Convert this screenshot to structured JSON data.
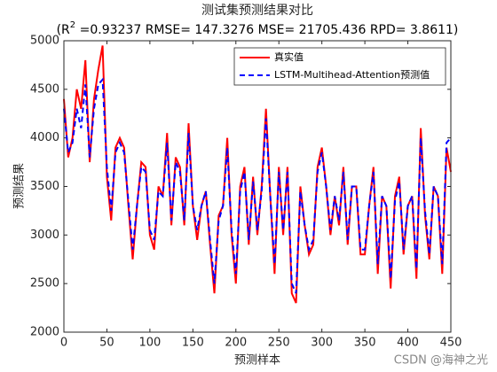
{
  "chart_data": {
    "type": "line",
    "title": "测试集预测结果对比",
    "subtitle_parts": [
      "(R",
      "2",
      " =0.93237 RMSE= 147.3276 MSE= 21705.436 RPD= 3.8611)"
    ],
    "x_label": "预测样本",
    "y_label": "预测结果",
    "watermark": "CSDN @海神之光",
    "legend": "top-right",
    "x": [
      0,
      5,
      10,
      15,
      20,
      25,
      30,
      35,
      40,
      45,
      50,
      55,
      60,
      65,
      70,
      75,
      80,
      85,
      90,
      95,
      100,
      105,
      110,
      115,
      120,
      125,
      130,
      135,
      140,
      145,
      150,
      155,
      160,
      165,
      170,
      175,
      180,
      185,
      190,
      195,
      200,
      205,
      210,
      215,
      220,
      225,
      230,
      235,
      240,
      245,
      250,
      255,
      260,
      265,
      270,
      275,
      280,
      285,
      290,
      295,
      300,
      305,
      310,
      315,
      320,
      325,
      330,
      335,
      340,
      345,
      350,
      355,
      360,
      365,
      370,
      375,
      380,
      385,
      390,
      395,
      400,
      405,
      410,
      415,
      420,
      425,
      430,
      435,
      440,
      445,
      450
    ],
    "series": [
      {
        "name": "真实值",
        "color": "#ff0000",
        "dash": false,
        "values": [
          4400,
          3800,
          4000,
          4500,
          4300,
          4800,
          3750,
          4400,
          4700,
          4950,
          3600,
          3150,
          3900,
          4000,
          3900,
          3300,
          2750,
          3300,
          3750,
          3700,
          3000,
          2850,
          3500,
          3400,
          4050,
          3100,
          3800,
          3700,
          3100,
          4150,
          3300,
          2950,
          3300,
          3450,
          2900,
          2400,
          3200,
          3300,
          4000,
          3000,
          2500,
          3500,
          3700,
          2900,
          3600,
          3000,
          3500,
          4300,
          3400,
          2600,
          3700,
          3000,
          3700,
          2400,
          2300,
          3500,
          3100,
          2800,
          2900,
          3700,
          3900,
          3500,
          3000,
          3400,
          3100,
          3700,
          2900,
          3500,
          3500,
          2800,
          2800,
          3300,
          3700,
          2600,
          3400,
          3300,
          2450,
          3400,
          3600,
          2800,
          3300,
          3400,
          2550,
          4100,
          3200,
          2750,
          3500,
          3400,
          2600,
          3900,
          3650
        ]
      },
      {
        "name": "LSTM-Multihead-Attention预测值",
        "color": "#0000ff",
        "dash": true,
        "values": [
          4300,
          3850,
          3950,
          4300,
          4100,
          4550,
          3800,
          4300,
          4550,
          4600,
          3700,
          3250,
          3850,
          3950,
          3850,
          3350,
          2850,
          3300,
          3700,
          3650,
          3050,
          2950,
          3450,
          3400,
          3950,
          3150,
          3750,
          3650,
          3150,
          4050,
          3300,
          3050,
          3300,
          3450,
          2950,
          2500,
          3150,
          3300,
          3900,
          3050,
          2600,
          3450,
          3650,
          2950,
          3550,
          3050,
          3450,
          4200,
          3400,
          2700,
          3650,
          3050,
          3650,
          2500,
          2400,
          3450,
          3100,
          2850,
          2950,
          3650,
          3850,
          3500,
          3050,
          3400,
          3150,
          3650,
          2950,
          3500,
          3500,
          2850,
          2850,
          3300,
          3650,
          2700,
          3400,
          3300,
          2550,
          3350,
          3550,
          2850,
          3300,
          3400,
          2650,
          4000,
          3250,
          2800,
          3500,
          3400,
          2700,
          3950,
          4000
        ]
      }
    ],
    "xlim": [
      0,
      450
    ],
    "xticks": [
      0,
      50,
      100,
      150,
      200,
      250,
      300,
      350,
      400,
      450
    ],
    "ylim": [
      2000,
      5000
    ],
    "yticks": [
      2000,
      2500,
      3000,
      3500,
      4000,
      4500,
      5000
    ]
  }
}
